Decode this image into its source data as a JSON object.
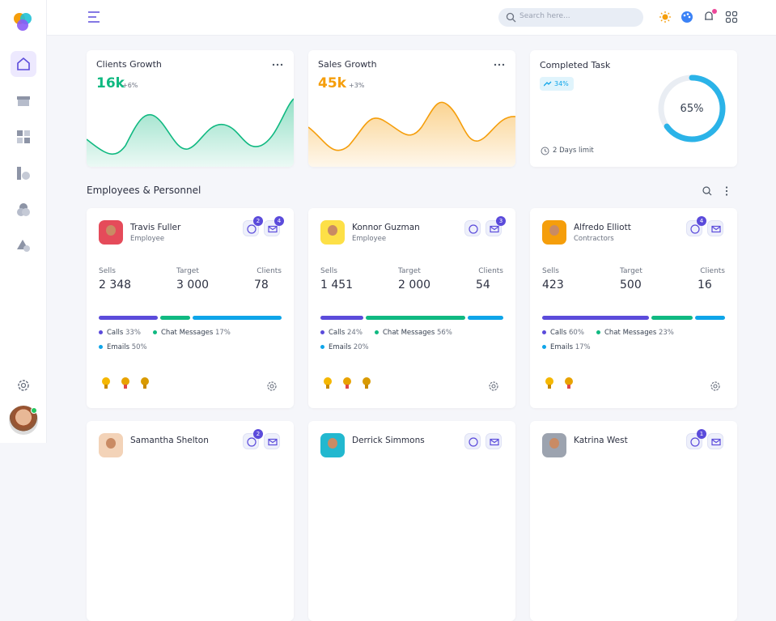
{
  "header": {
    "search_placeholder": "Search here..."
  },
  "stats": [
    {
      "title": "Clients Growth",
      "value": "16k",
      "change": "+6%"
    },
    {
      "title": "Sales Growth",
      "value": "45k",
      "change": "+3%"
    }
  ],
  "task": {
    "title": "Completed Task",
    "trend": "34%",
    "progress": {
      "value": 65,
      "label": "65%"
    },
    "limit": "2 Days limit"
  },
  "section_title": "Employees & Personnel",
  "labels": {
    "sells": "Sells",
    "target": "Target",
    "clients": "Clients"
  },
  "employees": [
    {
      "name": "Travis Fuller",
      "role": "Employee",
      "chat": "2",
      "mail": "4",
      "sells": "2 348",
      "target": "3 000",
      "clients": "78",
      "breakdown": [
        {
          "name": "Calls",
          "value": 33,
          "label": "33%"
        },
        {
          "name": "Chat Messages",
          "value": 17,
          "label": "17%"
        },
        {
          "name": "Emails",
          "value": 50,
          "label": "50%"
        }
      ]
    },
    {
      "name": "Konnor Guzman",
      "role": "Employee",
      "mail": "3",
      "sells": "1 451",
      "target": "2 000",
      "clients": "54",
      "breakdown": [
        {
          "name": "Calls",
          "value": 24,
          "label": "24%"
        },
        {
          "name": "Chat Messages",
          "value": 56,
          "label": "56%"
        },
        {
          "name": "Emails",
          "value": 20,
          "label": "20%"
        }
      ]
    },
    {
      "name": "Alfredo Elliott",
      "role": "Contractors",
      "chat": "4",
      "sells": "423",
      "target": "500",
      "clients": "16",
      "breakdown": [
        {
          "name": "Calls",
          "value": 60,
          "label": "60%"
        },
        {
          "name": "Chat Messages",
          "value": 23,
          "label": "23%"
        },
        {
          "name": "Emails",
          "value": 17,
          "label": "17%"
        }
      ]
    },
    {
      "name": "Samantha Shelton",
      "chat": "2"
    },
    {
      "name": "Derrick Simmons"
    },
    {
      "name": "Katrina West",
      "chat": "1"
    }
  ]
}
